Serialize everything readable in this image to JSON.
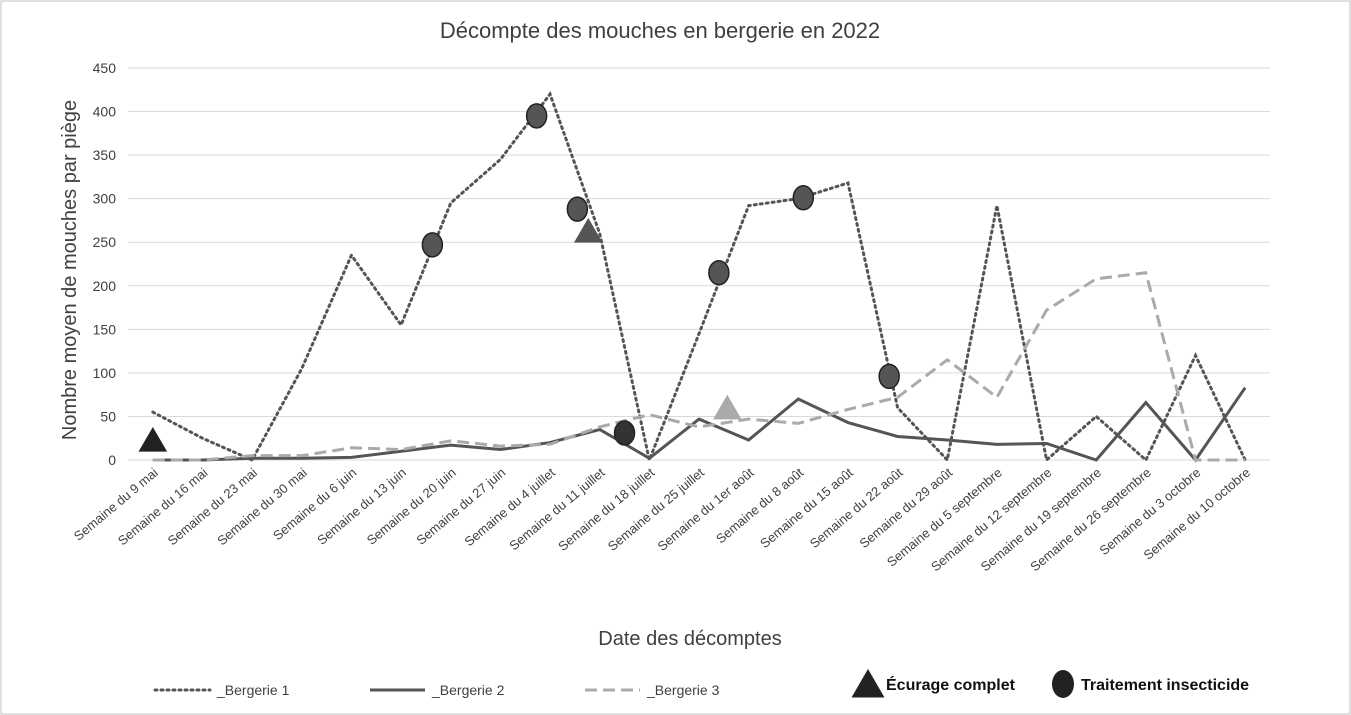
{
  "chart_data": {
    "type": "line",
    "title": "Décompte des mouches en bergerie en 2022",
    "x_label": "Date des décomptes",
    "y_label": "Nombre moyen de mouches par piège",
    "categories": [
      "Semaine du 9 mai",
      "Semaine du 16 mai",
      "Semaine du 23 mai",
      "Semaine du 30 mai",
      "Semaine du 6 juin",
      "Semaine du 13 juin",
      "Semaine du 20 juin",
      "Semaine du 27 juin",
      "Semaine du 4 juillet",
      "Semaine du 11 juillet",
      "Semaine du 18 juillet",
      "Semaine du 25 juillet",
      "Semaine du 1er août",
      "Semaine du 8 août",
      "Semaine du 15 août",
      "Semaine du 22 août",
      "Semaine du 29 août",
      "Semaine du 5 septembre",
      "Semaine du 12 septembre",
      "Semaine du 19 septembre",
      "Semaine du 26 septembre",
      "Semaine du 3 octobre",
      "Semaine du 10 octobre"
    ],
    "series": [
      {
        "name": "_Bergerie 1",
        "color": "#555555",
        "dash": "dotted",
        "values": [
          55,
          25,
          0,
          105,
          235,
          155,
          295,
          345,
          420,
          260,
          0,
          145,
          292,
          300,
          318,
          60,
          0,
          292,
          0,
          50,
          0,
          120,
          0
        ]
      },
      {
        "name": "_Bergerie 2",
        "color": "#555555",
        "dash": "solid",
        "values": [
          0,
          0,
          2,
          2,
          3,
          10,
          17,
          12,
          20,
          35,
          2,
          47,
          23,
          70,
          43,
          27,
          23,
          18,
          19,
          0,
          66,
          0,
          83
        ]
      },
      {
        "name": "_Bergerie 3",
        "color": "#aaaaaa",
        "dash": "dashed",
        "values": [
          0,
          0,
          5,
          5,
          14,
          12,
          22,
          16,
          18,
          38,
          52,
          38,
          47,
          42,
          58,
          72,
          115,
          72,
          172,
          208,
          215,
          0,
          0
        ]
      }
    ],
    "markers": [
      {
        "name": "Écurage complet",
        "shape": "triangle",
        "color": "#222222",
        "points": [
          {
            "x": 0,
            "y": 23,
            "color": "#222222"
          },
          {
            "x": 8.77,
            "y": 263,
            "color": "#555555"
          },
          {
            "x": 11.57,
            "y": 60,
            "color": "#aaaaaa"
          }
        ]
      },
      {
        "name": "Traitement insecticide",
        "shape": "circle",
        "color": "#222222",
        "points": [
          {
            "x": 5.63,
            "y": 247,
            "color": "#555555"
          },
          {
            "x": 7.73,
            "y": 395,
            "color": "#555555"
          },
          {
            "x": 8.55,
            "y": 288,
            "color": "#555555"
          },
          {
            "x": 9.5,
            "y": 31,
            "color": "#333333"
          },
          {
            "x": 11.4,
            "y": 215,
            "color": "#555555"
          },
          {
            "x": 13.1,
            "y": 301,
            "color": "#555555"
          },
          {
            "x": 14.83,
            "y": 96,
            "color": "#555555"
          }
        ]
      }
    ],
    "ylim": [
      0,
      450
    ],
    "yticks": [
      0,
      50,
      100,
      150,
      200,
      250,
      300,
      350,
      400,
      450
    ],
    "grid": true,
    "legend": "bottom"
  }
}
